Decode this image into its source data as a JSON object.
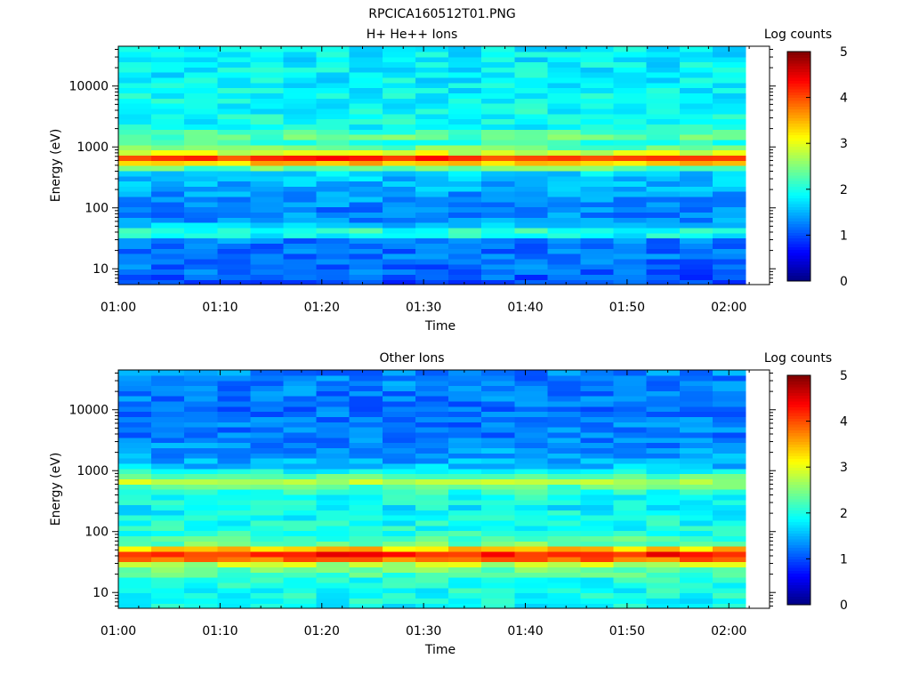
{
  "figure_title": "RPCICA160512T01.PNG",
  "chart_data": [
    {
      "type": "heatmap",
      "title": "H+ He++ Ions",
      "xlabel": "Time",
      "ylabel": "Energy (eV)",
      "x_ticks": [
        "01:00",
        "01:10",
        "01:20",
        "01:30",
        "01:40",
        "01:50",
        "02:00"
      ],
      "x_range": [
        "01:00",
        "02:04"
      ],
      "y_scale": "log",
      "y_ticks": [
        "10",
        "100",
        "1000",
        "10000"
      ],
      "y_range": [
        5.5,
        45000
      ],
      "colorbar_label": "Log counts",
      "colorbar_ticks": [
        "0",
        "1",
        "2",
        "3",
        "4",
        "5"
      ],
      "colorbar_range": [
        0,
        5
      ],
      "time_bins": 19,
      "energy_profile_log10eV_to_logcounts": [
        [
          0.7,
          0.9
        ],
        [
          0.9,
          1.1
        ],
        [
          1.2,
          1.2
        ],
        [
          1.45,
          1.15
        ],
        [
          1.6,
          2.35
        ],
        [
          1.68,
          1.7
        ],
        [
          1.8,
          1.35
        ],
        [
          2.0,
          1.25
        ],
        [
          2.3,
          1.45
        ],
        [
          2.6,
          1.7
        ],
        [
          2.75,
          3.5
        ],
        [
          2.82,
          4.2
        ],
        [
          2.88,
          3.1
        ],
        [
          3.05,
          2.05
        ],
        [
          3.15,
          2.3
        ],
        [
          3.2,
          2.5
        ],
        [
          3.3,
          1.95
        ],
        [
          4.0,
          1.85
        ],
        [
          4.7,
          1.8
        ]
      ]
    },
    {
      "type": "heatmap",
      "title": "Other Ions",
      "xlabel": "Time",
      "ylabel": "Energy (eV)",
      "x_ticks": [
        "01:00",
        "01:10",
        "01:20",
        "01:30",
        "01:40",
        "01:50",
        "02:00"
      ],
      "x_range": [
        "01:00",
        "02:04"
      ],
      "y_scale": "log",
      "y_ticks": [
        "10",
        "100",
        "1000",
        "10000"
      ],
      "y_range": [
        5.5,
        45000
      ],
      "colorbar_label": "Log counts",
      "colorbar_ticks": [
        "0",
        "1",
        "2",
        "3",
        "4",
        "5"
      ],
      "colorbar_range": [
        0,
        5
      ],
      "time_bins": 19,
      "energy_profile_log10eV_to_logcounts": [
        [
          0.7,
          1.9
        ],
        [
          1.2,
          2.0
        ],
        [
          1.45,
          2.6
        ],
        [
          1.55,
          3.9
        ],
        [
          1.62,
          4.4
        ],
        [
          1.7,
          3.6
        ],
        [
          1.8,
          2.4
        ],
        [
          2.0,
          2.0
        ],
        [
          2.4,
          1.85
        ],
        [
          2.7,
          2.1
        ],
        [
          2.82,
          2.75
        ],
        [
          2.9,
          2.3
        ],
        [
          3.1,
          1.5
        ],
        [
          3.5,
          1.25
        ],
        [
          4.0,
          1.2
        ],
        [
          4.7,
          1.3
        ]
      ]
    }
  ]
}
